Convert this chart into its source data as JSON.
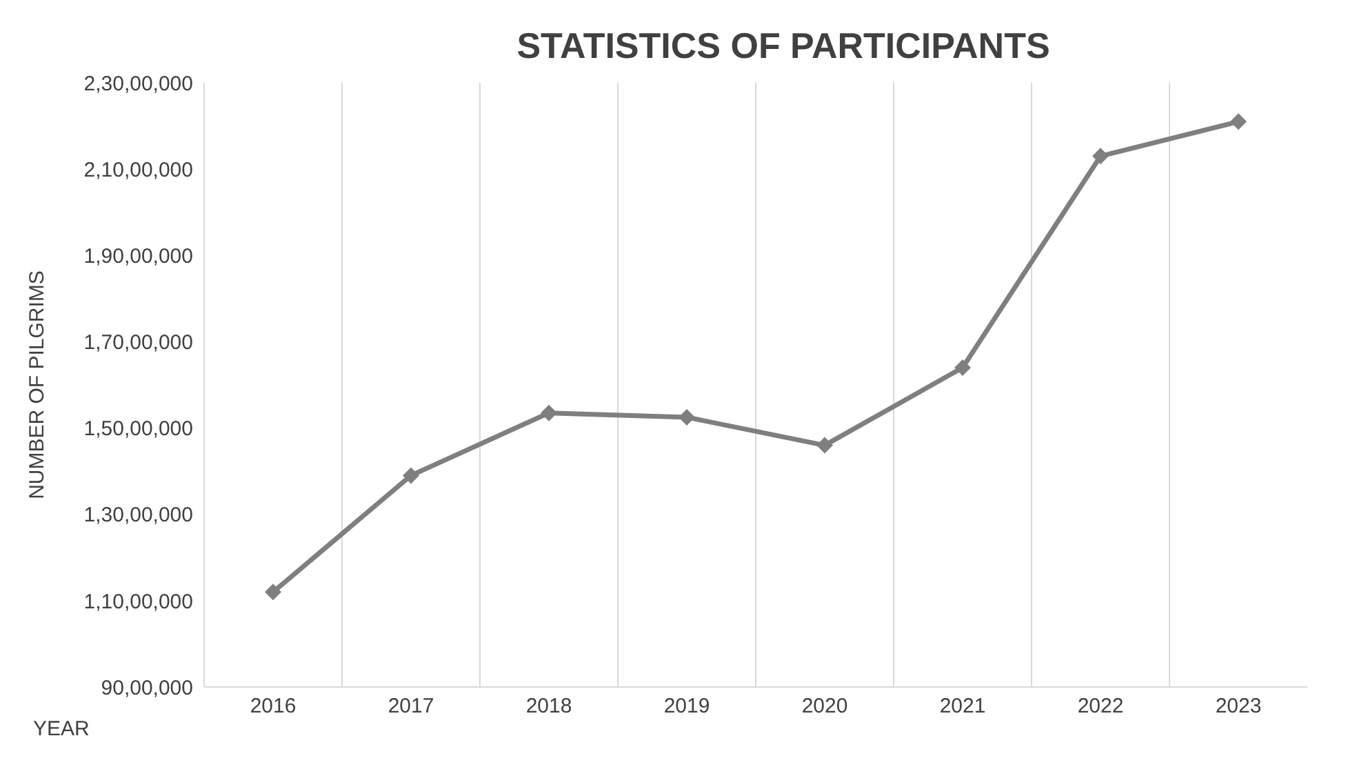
{
  "chart_data": {
    "type": "line",
    "title": "STATISTICS OF PARTICIPANTS",
    "xlabel": "YEAR",
    "ylabel": "NUMBER OF PILGRIMS",
    "categories": [
      "2016",
      "2017",
      "2018",
      "2019",
      "2020",
      "2021",
      "2022",
      "2023"
    ],
    "series": [
      {
        "color": "#7f7f7f",
        "values": [
          11200000,
          13900000,
          15350000,
          15250000,
          14600000,
          16400000,
          21300000,
          22100000
        ]
      }
    ],
    "ylim": [
      9000000,
      23000000
    ],
    "yticks": [
      {
        "value": 9000000,
        "label": "90,00,000"
      },
      {
        "value": 11000000,
        "label": "1,10,00,000"
      },
      {
        "value": 13000000,
        "label": "1,30,00,000"
      },
      {
        "value": 15000000,
        "label": "1,50,00,000"
      },
      {
        "value": 17000000,
        "label": "1,70,00,000"
      },
      {
        "value": 19000000,
        "label": "1,90,00,000"
      },
      {
        "value": 21000000,
        "label": "2,10,00,000"
      },
      {
        "value": 23000000,
        "label": "2,30,00,000"
      }
    ],
    "grid": "x",
    "marker": "diamond",
    "line_style": "solid",
    "legend": false
  }
}
